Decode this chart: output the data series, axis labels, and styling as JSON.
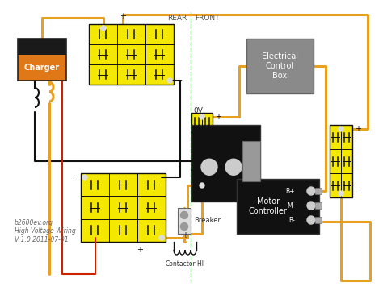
{
  "bg_color": "#ffffff",
  "orange": "#E8A020",
  "black": "#111111",
  "red": "#cc2200",
  "yellow": "#f5e800",
  "gray": "#888888",
  "divider_color": "#88cc88",
  "charger_top": "#1a1a1a",
  "charger_bot": "#E07818",
  "ecb_fill": "#8a8a8a",
  "motor_fill": "#111111",
  "contactor_fill": "#111111",
  "rear_label": "REAR",
  "front_label": "FRONT",
  "ov_label": "0V",
  "breaker_label": "Breaker",
  "contactor_label": "Contactor-HI",
  "charger_label": "Charger",
  "ecb_label": "Electrical\nControl\nBox",
  "motor_label": "Motor\nController",
  "motor_terminals": [
    "B+",
    "M-",
    "B-"
  ],
  "watermark": "b2600ev.org\nHigh Voltage Wiring\nV 1.0 2011-07-01",
  "figsize": [
    4.74,
    3.66
  ],
  "dpi": 100
}
